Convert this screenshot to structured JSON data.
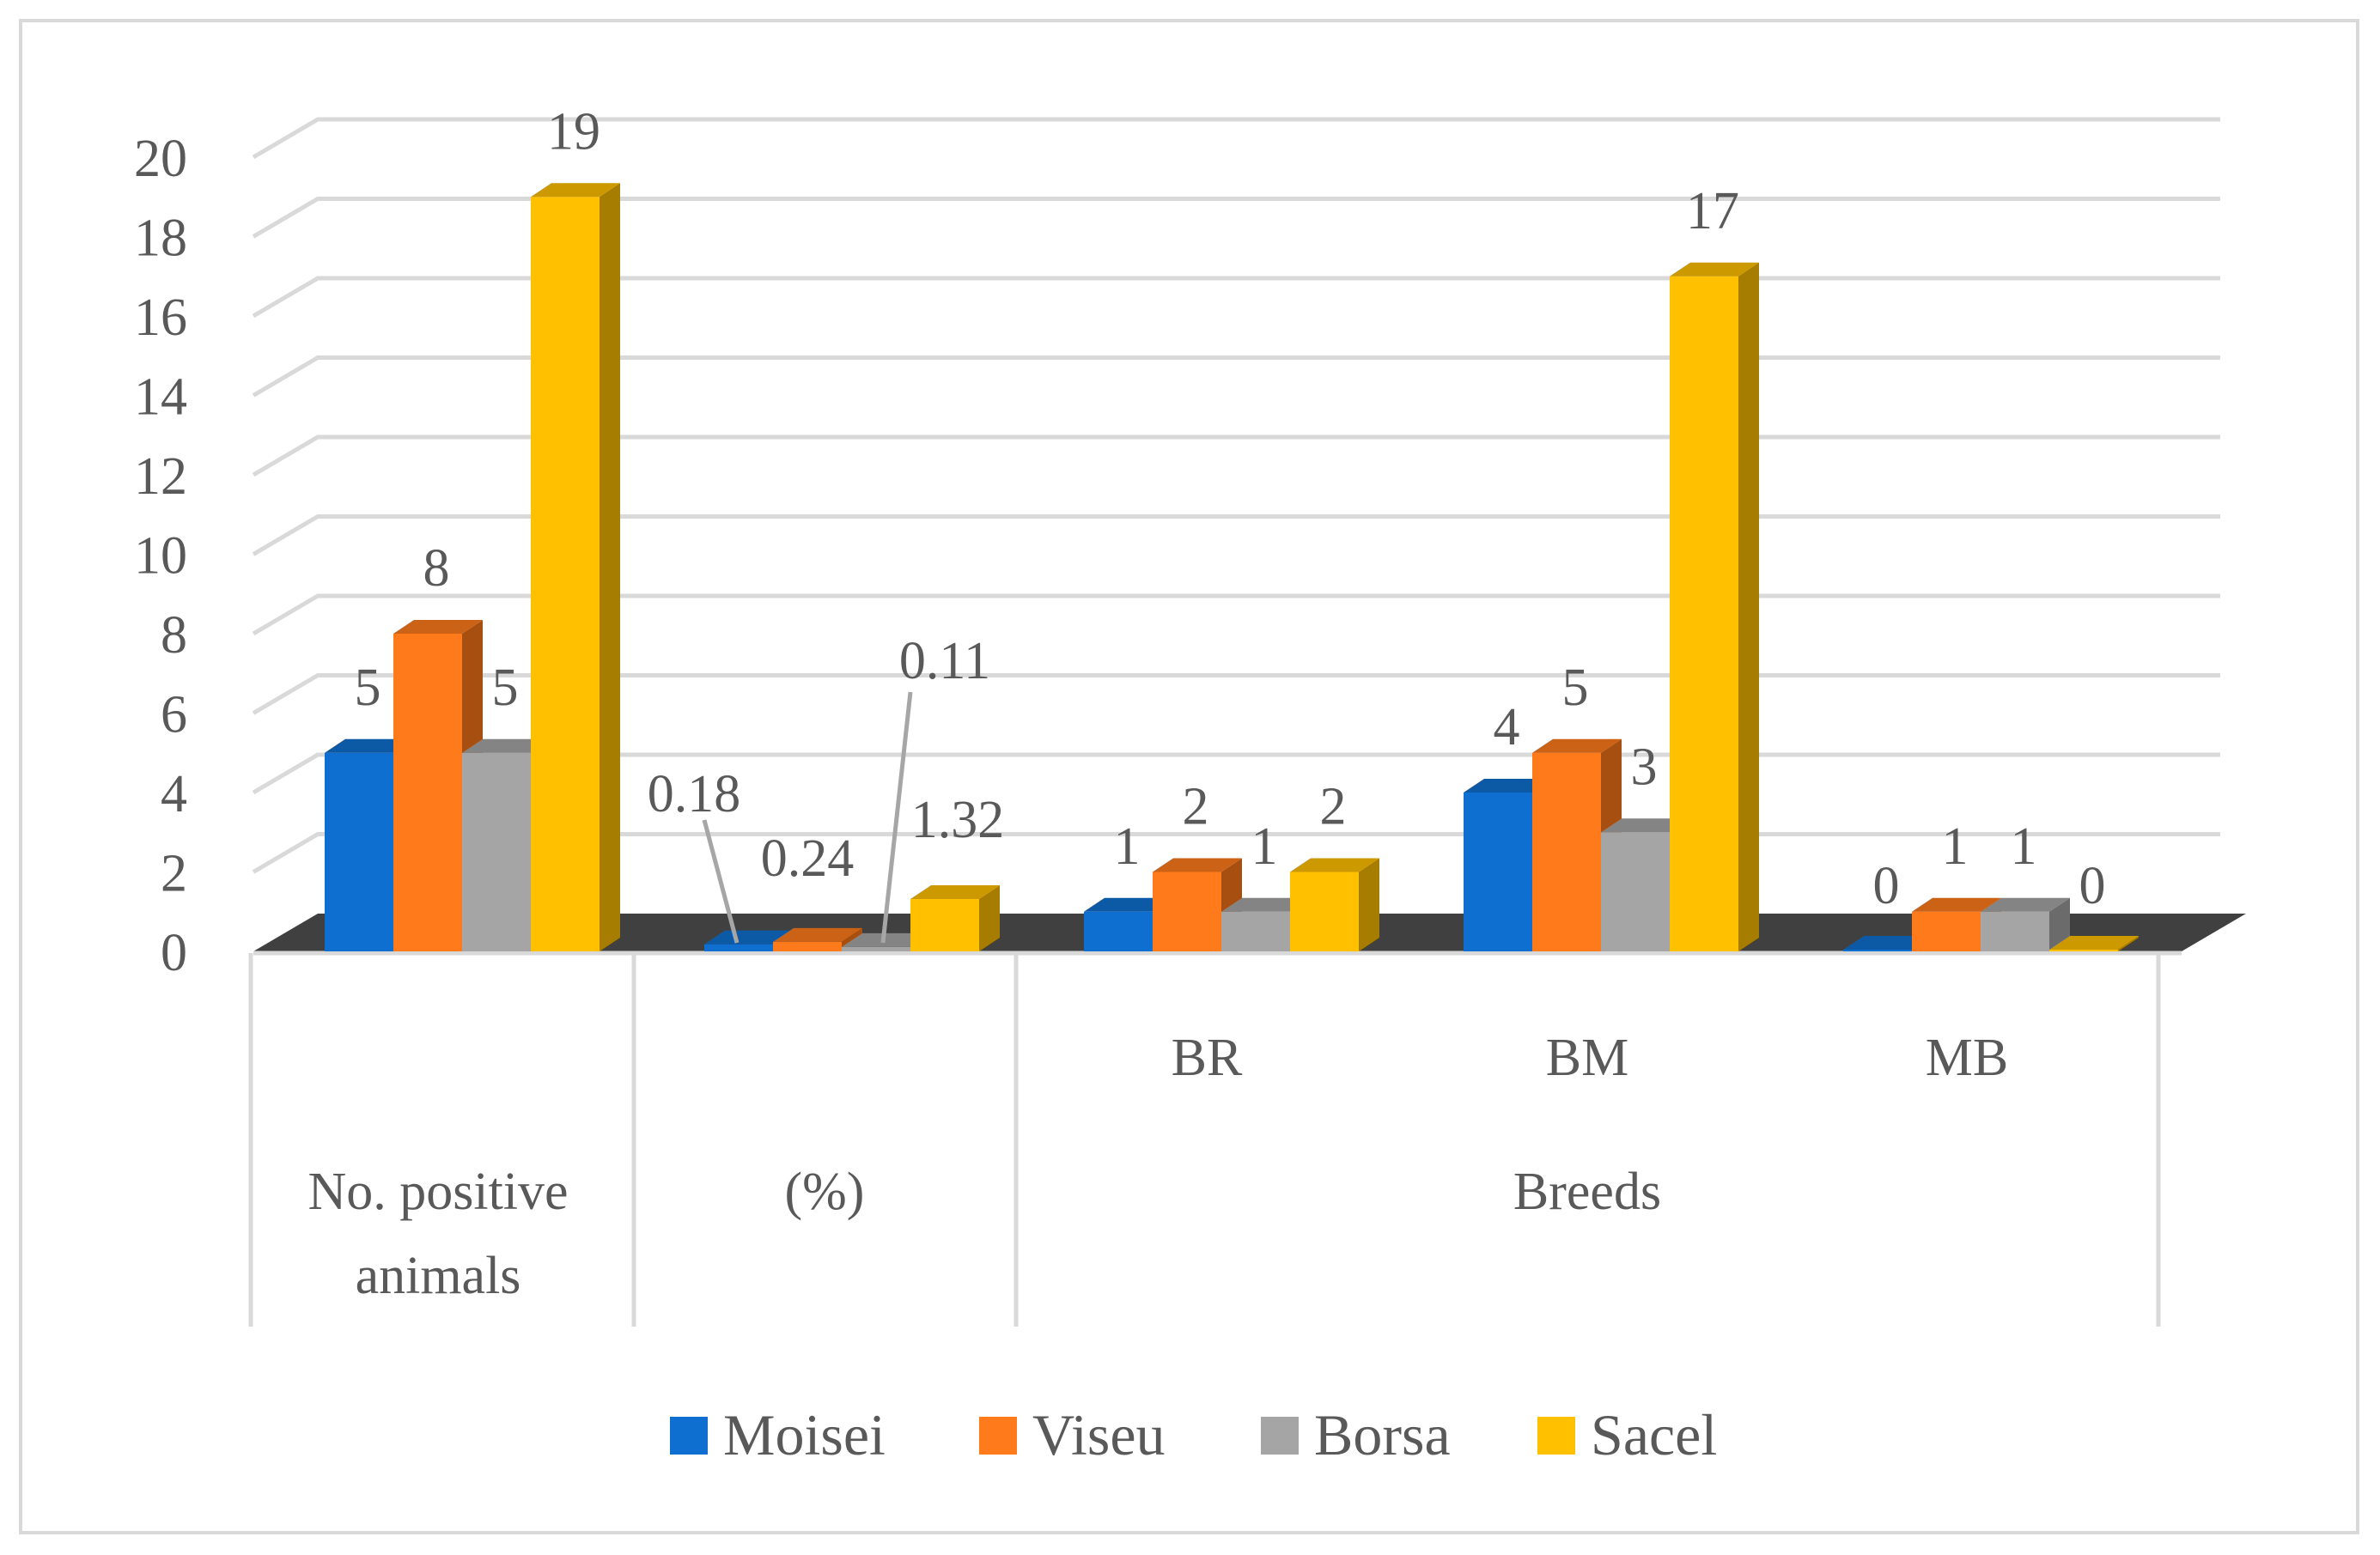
{
  "chart_data": {
    "type": "bar",
    "style": "3d-clustered-column",
    "title": "",
    "xlabel": "",
    "ylabel": "",
    "ylim": [
      0,
      20
    ],
    "ytick_step": 2,
    "yticks": [
      "0",
      "2",
      "4",
      "6",
      "8",
      "10",
      "12",
      "14",
      "16",
      "18",
      "20"
    ],
    "grid": true,
    "legend_position": "bottom",
    "categories": [
      {
        "label": "No. positive animals",
        "lines": [
          "No. positive",
          "animals"
        ],
        "group": ""
      },
      {
        "label": "(%)",
        "lines": [
          "(%)"
        ],
        "group": ""
      },
      {
        "label": "BR",
        "lines": [
          "BR"
        ],
        "group": "Breeds"
      },
      {
        "label": "BM",
        "lines": [
          "BM"
        ],
        "group": "Breeds"
      },
      {
        "label": "MB",
        "lines": [
          "MB"
        ],
        "group": "Breeds"
      }
    ],
    "group_label": "Breeds",
    "series": [
      {
        "name": "Moisei",
        "color": "#0f6fd0",
        "values": [
          5,
          0.18,
          1,
          4,
          0
        ],
        "labels": [
          "5",
          "0.18",
          "1",
          "4",
          "0"
        ]
      },
      {
        "name": "Viseu",
        "color": "#ff7a1a",
        "values": [
          8,
          0.24,
          2,
          5,
          1
        ],
        "labels": [
          "8",
          "0.24",
          "2",
          "5",
          "1"
        ]
      },
      {
        "name": "Borsa",
        "color": "#a5a5a5",
        "values": [
          5,
          0.11,
          1,
          3,
          1
        ],
        "labels": [
          "5",
          "0.11",
          "1",
          "3",
          "1"
        ]
      },
      {
        "name": "Sacel",
        "color": "#ffc000",
        "values": [
          19,
          1.32,
          2,
          17,
          0
        ],
        "labels": [
          "19",
          "1.32",
          "2",
          "17",
          "0"
        ]
      }
    ]
  }
}
